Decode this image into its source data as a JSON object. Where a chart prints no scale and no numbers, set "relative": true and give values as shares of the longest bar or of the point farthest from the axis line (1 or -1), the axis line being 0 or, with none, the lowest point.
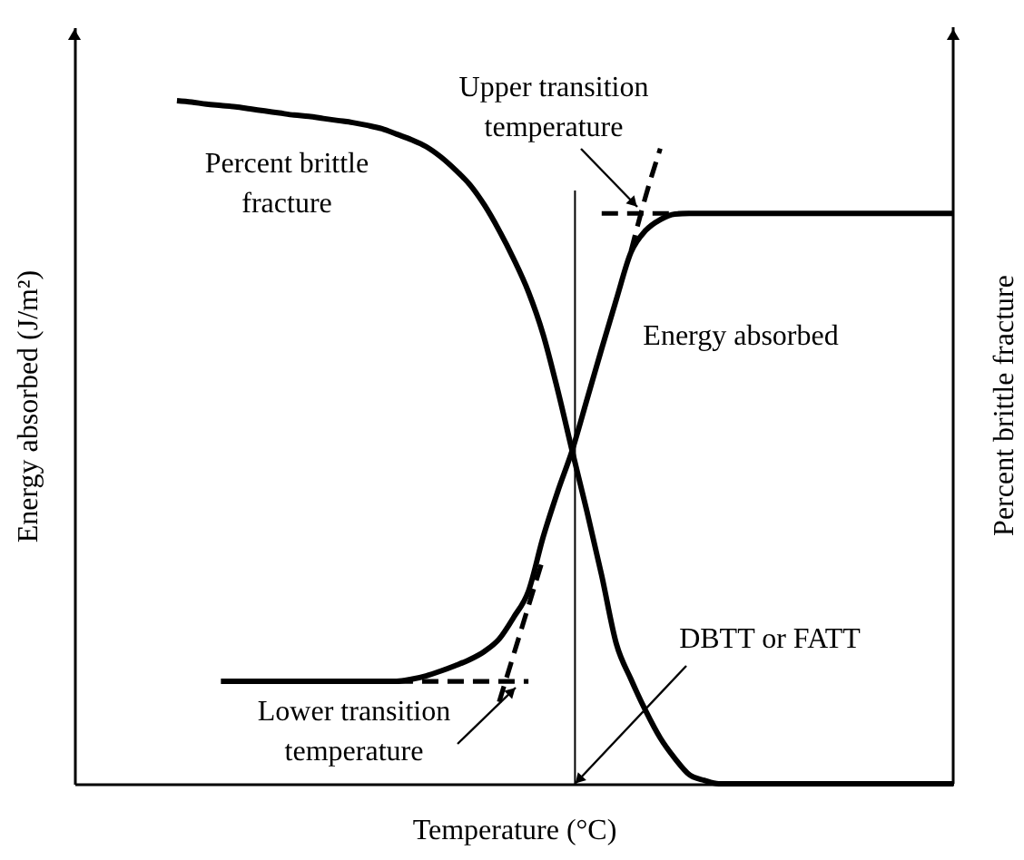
{
  "chart_data": {
    "type": "line",
    "relative": true,
    "tick_labels": false,
    "xlabel": "Temperature (°C)",
    "ylabel": "Energy absorbed (J/m²)",
    "y2label": "Percent brittle fracture",
    "categories": [
      null,
      null,
      null,
      null,
      null,
      null,
      null,
      null,
      null,
      null,
      null,
      null,
      null,
      null,
      null,
      null,
      null,
      null,
      null,
      null,
      null,
      null,
      null,
      null,
      null,
      null,
      null,
      null,
      null,
      null,
      null,
      null,
      null,
      null,
      null,
      null,
      null,
      null,
      null,
      null,
      null,
      null,
      null,
      null,
      null,
      null,
      null,
      null,
      null,
      null,
      null,
      null,
      null,
      null,
      null,
      null,
      null,
      null,
      null,
      null,
      null
    ],
    "series": [
      {
        "name": "Percent brittle fracture",
        "color": "#000000",
        "values": [
          null,
          null,
          null,
          null,
          null,
          null,
          null,
          1.0,
          0.998,
          0.995,
          0.993,
          0.991,
          0.988,
          0.985,
          0.982,
          0.979,
          0.977,
          0.974,
          0.971,
          0.968,
          0.964,
          0.959,
          0.951,
          0.943,
          0.933,
          0.918,
          0.899,
          0.877,
          0.847,
          0.81,
          0.768,
          0.72,
          0.658,
          0.576,
          0.486,
          0.398,
          0.305,
          0.205,
          0.153,
          0.107,
          0.067,
          0.037,
          0.013,
          0.005,
          0,
          0,
          0,
          0,
          0,
          0,
          0,
          0,
          0,
          0,
          0,
          0,
          0,
          0,
          0,
          0,
          0
        ]
      },
      {
        "name": "Energy absorbed",
        "color": "#000000",
        "values": [
          null,
          null,
          null,
          null,
          null,
          null,
          null,
          null,
          null,
          null,
          0.15,
          0.15,
          0.15,
          0.15,
          0.15,
          0.15,
          0.15,
          0.15,
          0.15,
          0.15,
          0.15,
          0.15,
          0.15,
          0.153,
          0.158,
          0.165,
          0.173,
          0.182,
          0.194,
          0.212,
          0.244,
          0.282,
          0.361,
          0.428,
          0.489,
          0.563,
          0.637,
          0.709,
          0.778,
          0.81,
          0.826,
          0.834,
          0.835,
          0.835,
          0.835,
          0.835,
          0.835,
          0.835,
          0.835,
          0.835,
          0.835,
          0.835,
          0.835,
          0.835,
          0.835,
          0.835,
          0.835,
          0.835,
          0.835,
          0.835,
          0.835
        ]
      },
      {
        "type": "line",
        "line_style": "dashed",
        "color": "#000000",
        "values": [
          null,
          null,
          null,
          null,
          null,
          null,
          null,
          null,
          null,
          null,
          null,
          null,
          null,
          null,
          null,
          null,
          null,
          null,
          null,
          null,
          null,
          null,
          null,
          null,
          null,
          null,
          null,
          null,
          null,
          null,
          null,
          null,
          null,
          null,
          null,
          null,
          0.835,
          0.835,
          0.835,
          0.835,
          0.835,
          0.835,
          0.835,
          null,
          null,
          null,
          null,
          null,
          null,
          null,
          null,
          null,
          null,
          null,
          null,
          null,
          null,
          null,
          null,
          null,
          null
        ]
      },
      {
        "type": "line",
        "line_style": "dashed",
        "color": "#000000",
        "values": [
          null,
          null,
          null,
          null,
          null,
          null,
          null,
          null,
          null,
          null,
          null,
          null,
          null,
          null,
          null,
          null,
          null,
          null,
          null,
          null,
          null,
          null,
          null,
          null,
          null,
          null,
          null,
          null,
          null,
          null,
          null,
          null,
          null,
          null,
          null,
          null,
          null,
          null,
          0.78,
          0.86,
          0.93,
          null,
          null,
          null,
          null,
          null,
          null,
          null,
          null,
          null,
          null,
          null,
          null,
          null,
          null,
          null,
          null,
          null,
          null,
          null,
          null
        ]
      },
      {
        "type": "line",
        "line_style": "dashed",
        "color": "#000000",
        "values": [
          null,
          null,
          null,
          null,
          null,
          null,
          null,
          null,
          null,
          null,
          null,
          null,
          null,
          null,
          null,
          null,
          null,
          null,
          null,
          null,
          null,
          null,
          0.15,
          0.15,
          0.15,
          0.15,
          0.15,
          0.15,
          0.15,
          0.15,
          0.15,
          0.15,
          null,
          null,
          null,
          null,
          null,
          null,
          null,
          null,
          null,
          null,
          null,
          null,
          null,
          null,
          null,
          null,
          null,
          null,
          null,
          null,
          null,
          null,
          null,
          null,
          null,
          null,
          null,
          null,
          null
        ]
      },
      {
        "type": "line",
        "line_style": "dashed",
        "color": "#000000",
        "values": [
          null,
          null,
          null,
          null,
          null,
          null,
          null,
          null,
          null,
          null,
          null,
          null,
          null,
          null,
          null,
          null,
          null,
          null,
          null,
          null,
          null,
          null,
          null,
          null,
          null,
          null,
          null,
          null,
          null,
          0.12,
          0.19,
          0.26,
          0.33,
          null,
          null,
          null,
          null,
          null,
          null,
          null,
          null,
          null,
          null,
          null,
          null,
          null,
          null,
          null,
          null,
          null,
          null,
          null,
          null,
          null,
          null,
          null,
          null,
          null,
          null,
          null,
          null
        ]
      }
    ],
    "annotations": [
      "Upper transition temperature",
      "Lower transition temperature",
      "DBTT or FATT"
    ]
  }
}
